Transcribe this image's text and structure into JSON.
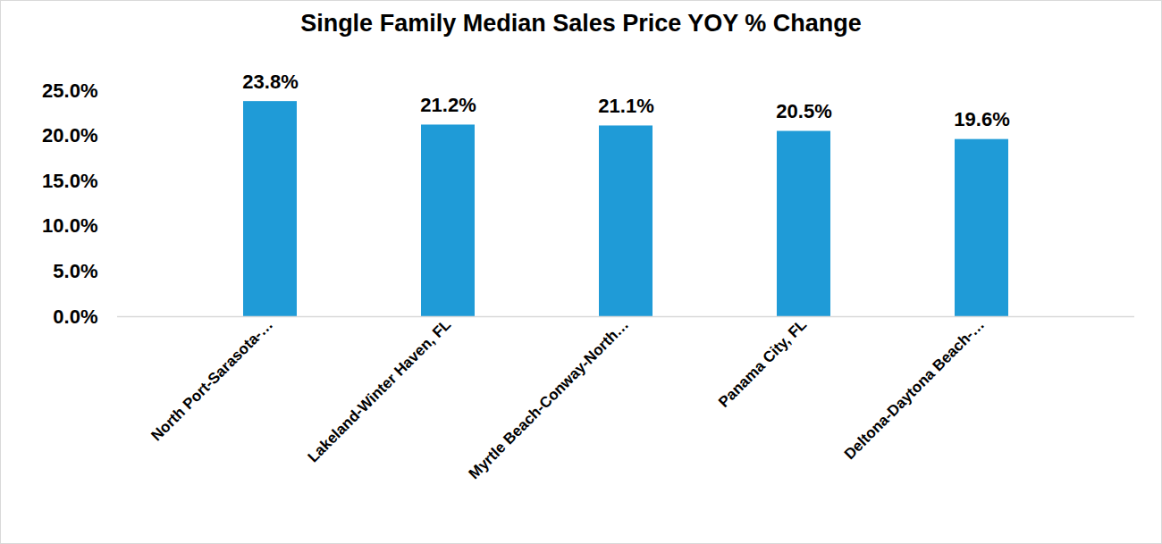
{
  "chart_data": {
    "type": "bar",
    "title": "Single Family Median Sales Price YOY % Change",
    "categories": [
      "North Port-Sarasota-…",
      "Lakeland-Winter Haven, FL",
      "Myrtle Beach-Conway-North…",
      "Panama City, FL",
      "Deltona-Daytona Beach-…"
    ],
    "values": [
      23.8,
      21.2,
      21.1,
      20.5,
      19.6
    ],
    "value_labels": [
      "23.8%",
      "21.2%",
      "21.1%",
      "20.5%",
      "19.6%"
    ],
    "color": "#1f9bd7",
    "ylim": [
      0,
      25
    ],
    "yticks": [
      {
        "value": 0,
        "label": "0.0%"
      },
      {
        "value": 5,
        "label": "5.0%"
      },
      {
        "value": 10,
        "label": "10.0%"
      },
      {
        "value": 15,
        "label": "15.0%"
      },
      {
        "value": 20,
        "label": "20.0%"
      },
      {
        "value": 25,
        "label": "25.0%"
      }
    ],
    "grid": false,
    "data_labels": true
  }
}
